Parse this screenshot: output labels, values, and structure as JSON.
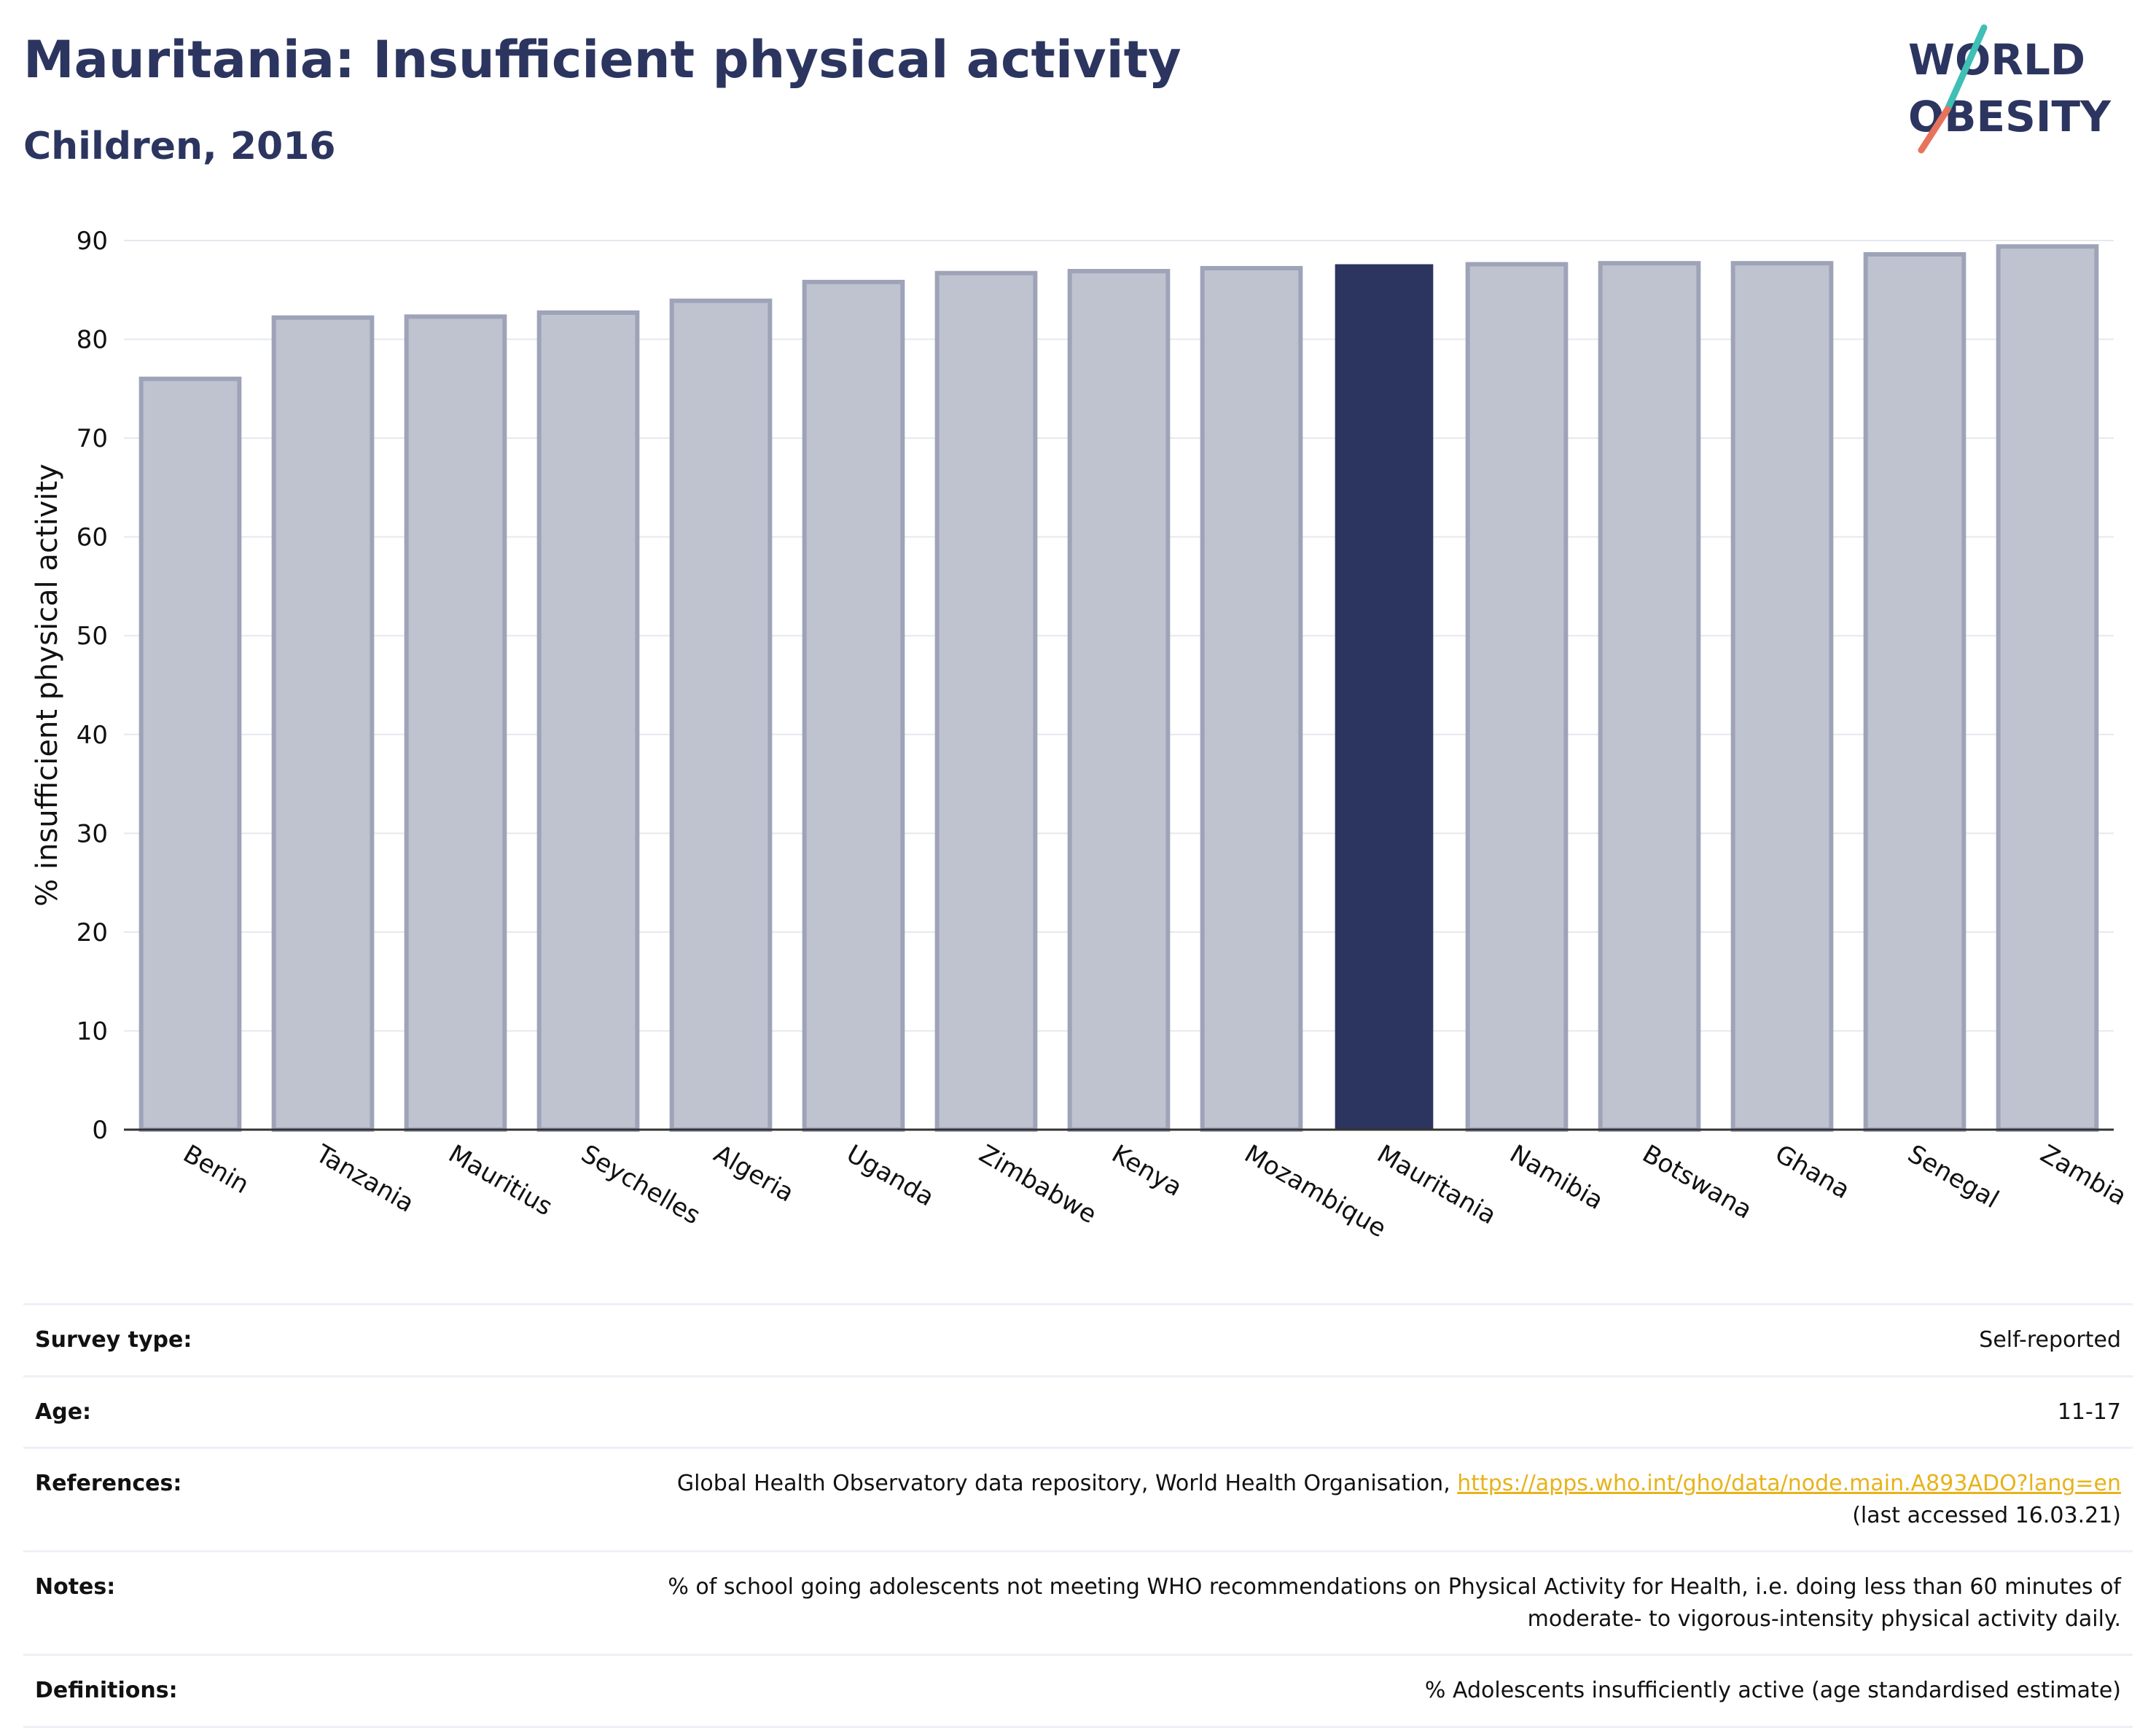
{
  "header": {
    "title": "Mauritania: Insufficient physical activity",
    "subtitle": "Children, 2016",
    "logo_line1": "WORLD",
    "logo_line2": "OBESITY"
  },
  "colors": {
    "highlight_bar": "#2b355f",
    "other_bar_fill": "#bfc2cf",
    "other_bar_stroke": "#9ea3b8",
    "link": "#e8b21a",
    "logo_teal": "#3fbfb6",
    "logo_coral": "#e8735c"
  },
  "chart_data": {
    "type": "bar",
    "title": "",
    "xlabel": "",
    "ylabel": "% insufficient physical activity",
    "ylim": [
      0,
      90
    ],
    "yticks": [
      0,
      10,
      20,
      30,
      40,
      50,
      60,
      70,
      80,
      90
    ],
    "grid": true,
    "highlight": "Mauritania",
    "categories": [
      "Benin",
      "Tanzania",
      "Mauritius",
      "Seychelles",
      "Algeria",
      "Uganda",
      "Zimbabwe",
      "Kenya",
      "Mozambique",
      "Mauritania",
      "Namibia",
      "Botswana",
      "Ghana",
      "Senegal",
      "Zambia"
    ],
    "values": [
      76.0,
      82.2,
      82.3,
      82.7,
      83.9,
      85.8,
      86.7,
      86.9,
      87.2,
      87.6,
      87.6,
      87.7,
      87.7,
      88.6,
      89.4
    ]
  },
  "info": {
    "survey_type_label": "Survey type:",
    "survey_type_value": "Self-reported",
    "age_label": "Age:",
    "age_value": "11-17",
    "references_label": "References:",
    "references_text": "Global Health Observatory data repository, World Health Organisation, ",
    "references_link": "https://apps.who.int/gho/data/node.main.A893ADO?lang=en",
    "references_accessed": "(last accessed 16.03.21)",
    "notes_label": "Notes:",
    "notes_line1": "% of school going adolescents not meeting WHO recommendations on Physical Activity for Health, i.e. doing less than 60 minutes of",
    "notes_line2": "moderate- to vigorous-intensity physical activity daily.",
    "definitions_label": "Definitions:",
    "definitions_value": "% Adolescents insufficiently active (age standardised estimate)"
  }
}
